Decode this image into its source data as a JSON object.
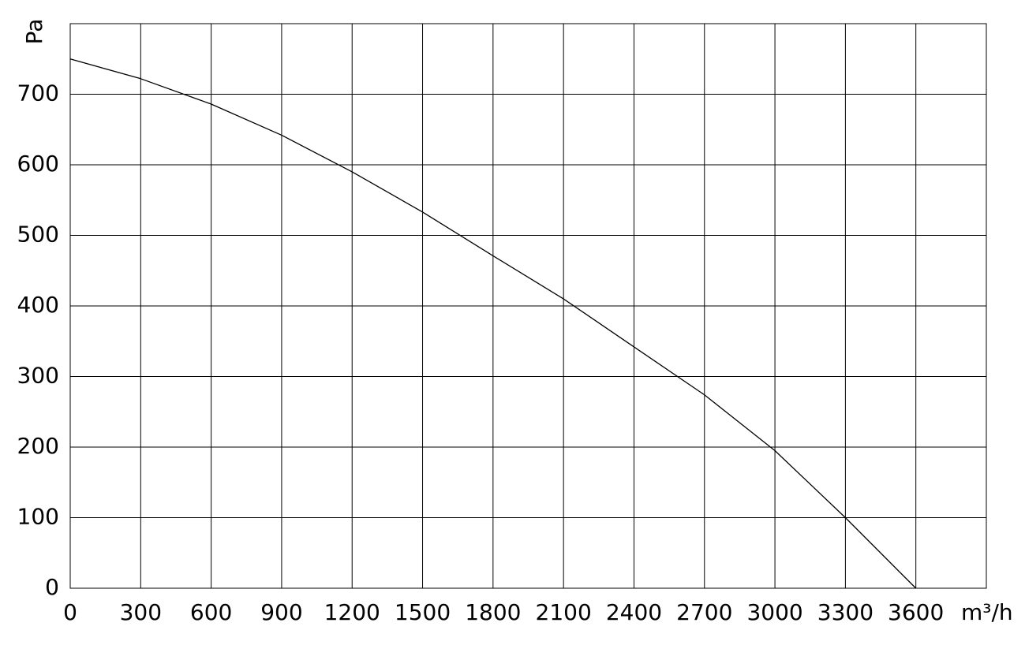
{
  "chart_data": {
    "type": "line",
    "y_label": "Pa",
    "x_label": "m³/h",
    "x": [
      0,
      300,
      600,
      900,
      1200,
      1500,
      1800,
      2100,
      2400,
      2700,
      3000,
      3300,
      3600
    ],
    "series": [
      {
        "color": "#000000",
        "values": [
          750,
          722,
          686,
          642,
          590,
          533,
          471,
          410,
          342,
          274,
          195,
          100,
          0
        ]
      }
    ],
    "xlim": [
      0,
      3900
    ],
    "xticks": [
      0,
      300,
      600,
      900,
      1200,
      1500,
      1800,
      2100,
      2400,
      2700,
      3000,
      3300,
      3600
    ],
    "ylim": [
      0,
      800
    ],
    "yticks": [
      0,
      100,
      200,
      300,
      400,
      500,
      600,
      700
    ],
    "grid": true
  }
}
